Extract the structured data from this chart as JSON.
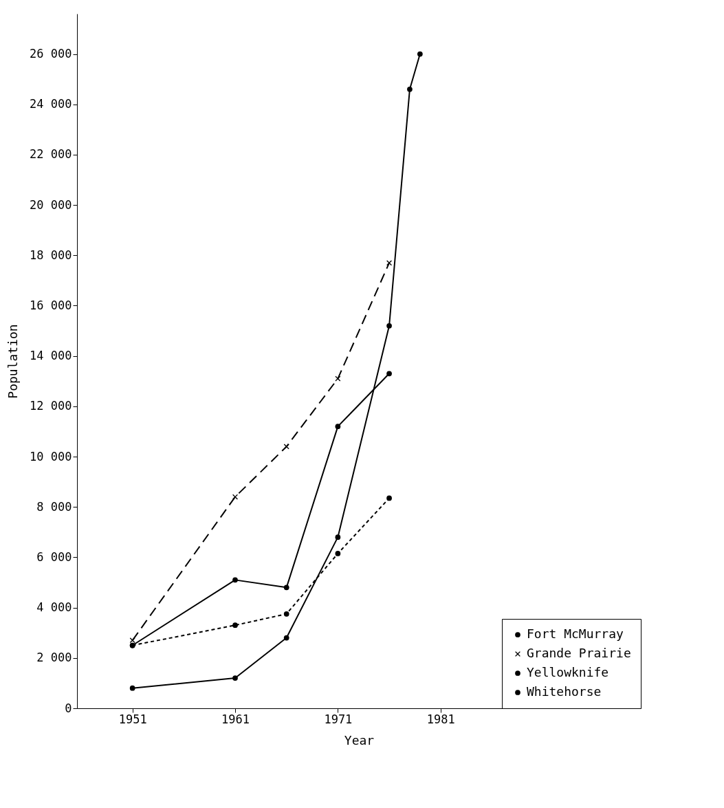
{
  "chart_data": {
    "type": "line",
    "xlabel": "Year",
    "ylabel": "Population",
    "xlim": [
      1945.6,
      2000.5
    ],
    "xticks": [
      1951,
      1961,
      1971,
      1981
    ],
    "ylim": [
      0,
      27600
    ],
    "yticks": [
      0,
      {
        "value": 2000,
        "label": "2 000"
      },
      {
        "value": 4000,
        "label": "4 000"
      },
      {
        "value": 6000,
        "label": "6 000"
      },
      {
        "value": 8000,
        "label": "8 000"
      },
      {
        "value": 10000,
        "label": "10 000"
      },
      {
        "value": 12000,
        "label": "12 000"
      },
      {
        "value": 14000,
        "label": "14 000"
      },
      {
        "value": 16000,
        "label": "16 000"
      },
      {
        "value": 18000,
        "label": "18 000"
      },
      {
        "value": 20000,
        "label": "20 000"
      },
      {
        "value": 22000,
        "label": "22 000"
      },
      {
        "value": 24000,
        "label": "24 000"
      },
      {
        "value": 26000,
        "label": "26 000"
      }
    ],
    "legend": "bottom right",
    "series": [
      {
        "name": "Fort McMurray",
        "color": "#000000",
        "marker": "circle",
        "line_style": "solid",
        "x": [
          1951,
          1961,
          1966,
          1971,
          1976,
          1978,
          1979
        ],
        "values": [
          800,
          1200,
          2800,
          6800,
          15200,
          24600,
          26000
        ]
      },
      {
        "name": "Grande Prairie",
        "color": "#000000",
        "marker": "cross",
        "line_style": "dashed",
        "x": [
          1951,
          1961,
          1966,
          1971,
          1976
        ],
        "values": [
          2700,
          8400,
          10400,
          13100,
          17700
        ]
      },
      {
        "name": "Yellowknife",
        "color": "#000000",
        "marker": "circle",
        "line_style": "dotted",
        "x": [
          1951,
          1961,
          1966,
          1971,
          1976
        ],
        "values": [
          2500,
          3300,
          3750,
          6150,
          8350
        ]
      },
      {
        "name": "Whitehorse",
        "color": "#000000",
        "marker": "circle",
        "line_style": "solid",
        "x": [
          1951,
          1961,
          1966,
          1971,
          1976
        ],
        "values": [
          2500,
          5100,
          4800,
          11200,
          13300
        ]
      }
    ]
  }
}
